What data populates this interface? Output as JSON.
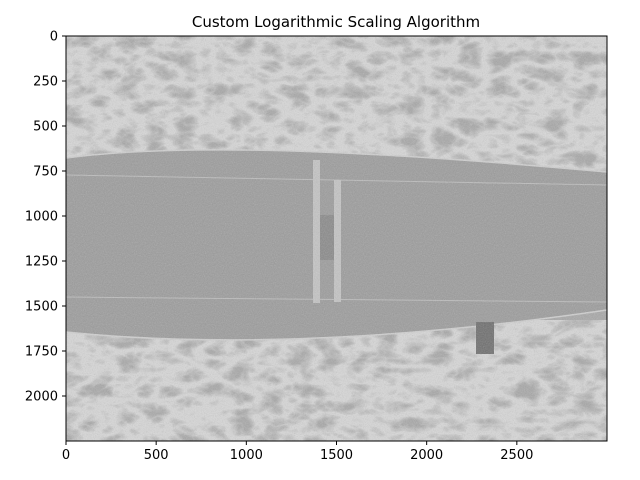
{
  "chart_data": {
    "type": "heatmap",
    "title": "Custom Logarithmic Scaling Algorithm",
    "xlabel": "",
    "ylabel": "",
    "xlim": [
      0,
      3000
    ],
    "ylim": [
      2250,
      0
    ],
    "x_ticks": [
      0,
      500,
      1000,
      1500,
      2000,
      2500
    ],
    "y_ticks": [
      0,
      250,
      500,
      750,
      1000,
      1250,
      1500,
      1750,
      2000
    ],
    "colormap": "grayscale",
    "grid": false,
    "legend": "none"
  }
}
